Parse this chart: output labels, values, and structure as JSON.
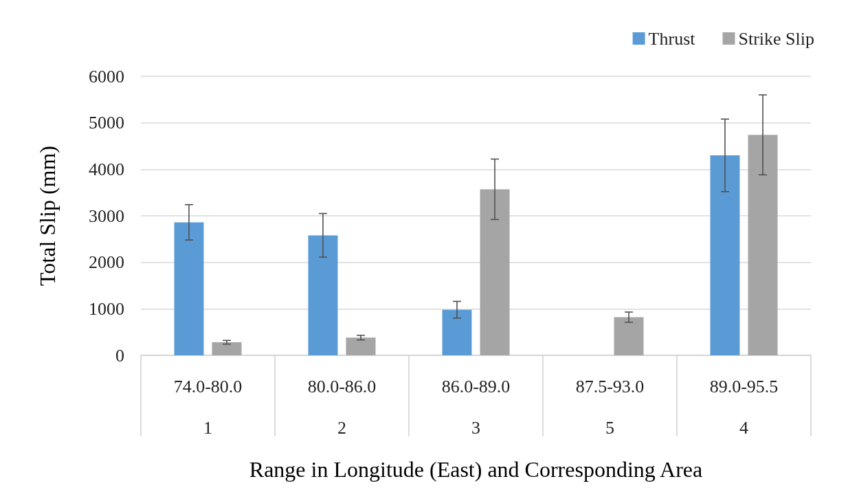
{
  "chart_data": {
    "type": "bar",
    "xlabel": "Range in Longitude (East) and Corresponding Area",
    "ylabel": "Total Slip (mm)",
    "categories": [
      "74.0-80.0\n1",
      "80.0-86.0\n2",
      "86.0-89.0\n3",
      "87.5-93.0\n5",
      "89.0-95.5\n4"
    ],
    "series": [
      {
        "name": "Thrust",
        "color": "#5b9bd5",
        "values": [
          2860,
          2580,
          980,
          null,
          4300
        ],
        "errors": [
          380,
          470,
          180,
          null,
          780
        ]
      },
      {
        "name": "Strike Slip",
        "color": "#a5a5a5",
        "values": [
          280,
          380,
          3570,
          820,
          4740
        ],
        "errors": [
          40,
          50,
          650,
          110,
          860
        ]
      }
    ],
    "ylim": [
      0,
      6000
    ],
    "yticks": [
      0,
      1000,
      2000,
      3000,
      4000,
      5000,
      6000
    ],
    "grid": "y",
    "legend": "top right"
  }
}
